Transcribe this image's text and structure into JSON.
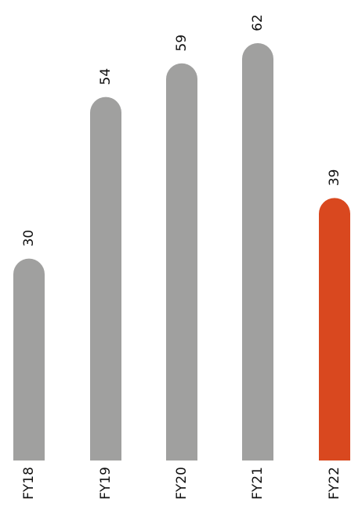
{
  "chart_data": {
    "type": "bar",
    "categories": [
      "FY18",
      "FY19",
      "FY20",
      "FY21",
      "FY22"
    ],
    "values": [
      30,
      54,
      59,
      62,
      39
    ],
    "bar_colors": [
      "#a0a09f",
      "#a0a09f",
      "#a0a09f",
      "#a0a09f",
      "#d9481f"
    ],
    "highlight_color": "#d9481f",
    "default_color": "#a0a09f",
    "title": "",
    "xlabel": "",
    "ylabel": "",
    "ylim": [
      0,
      62
    ],
    "grid": false,
    "value_labels_rotated": true,
    "category_labels_rotated": true
  }
}
